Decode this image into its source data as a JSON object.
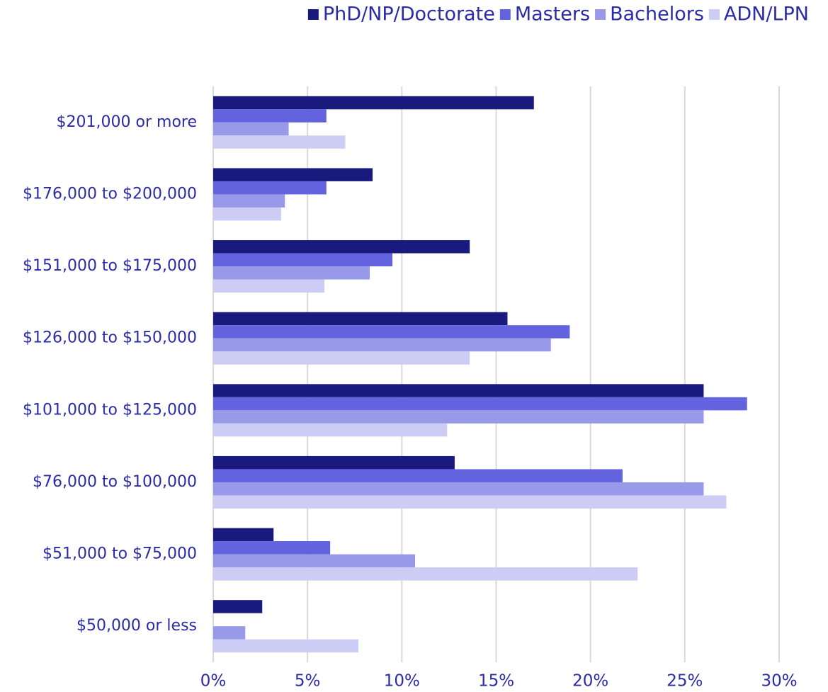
{
  "chart_data": {
    "type": "barh",
    "categories": [
      "$201,000 or more",
      "$176,000 to $200,000",
      "$151,000 to $175,000",
      "$126,000 to $150,000",
      "$101,000 to $125,000",
      "$76,000 to $100,000",
      "$51,000 to $75,000",
      "$50,000 or less"
    ],
    "series": [
      {
        "name": "PhD/NP/Doctorate",
        "color": "#1a1a7e",
        "values": [
          17.0,
          8.45,
          13.6,
          15.6,
          26.0,
          12.8,
          3.2,
          2.6
        ]
      },
      {
        "name": "Masters",
        "color": "#6363e0",
        "values": [
          6.0,
          6.0,
          9.5,
          18.9,
          28.3,
          21.7,
          6.2,
          0
        ]
      },
      {
        "name": "Bachelors",
        "color": "#9999ea",
        "values": [
          4.0,
          3.8,
          8.3,
          17.9,
          26.0,
          26.0,
          10.7,
          1.7
        ]
      },
      {
        "name": "ADN/LPN",
        "color": "#ccccf5",
        "values": [
          7.0,
          3.6,
          5.9,
          13.6,
          12.4,
          27.2,
          22.5,
          7.7
        ]
      }
    ],
    "xlim": [
      0,
      30
    ],
    "xticks": [
      {
        "value": 0,
        "label": "0%"
      },
      {
        "value": 5,
        "label": "5%"
      },
      {
        "value": 10,
        "label": "10%"
      },
      {
        "value": 15,
        "label": "15%"
      },
      {
        "value": 20,
        "label": "20%"
      },
      {
        "value": 25,
        "label": "25%"
      },
      {
        "value": 30,
        "label": "30%"
      }
    ],
    "grid": true,
    "legend": "top-right"
  }
}
